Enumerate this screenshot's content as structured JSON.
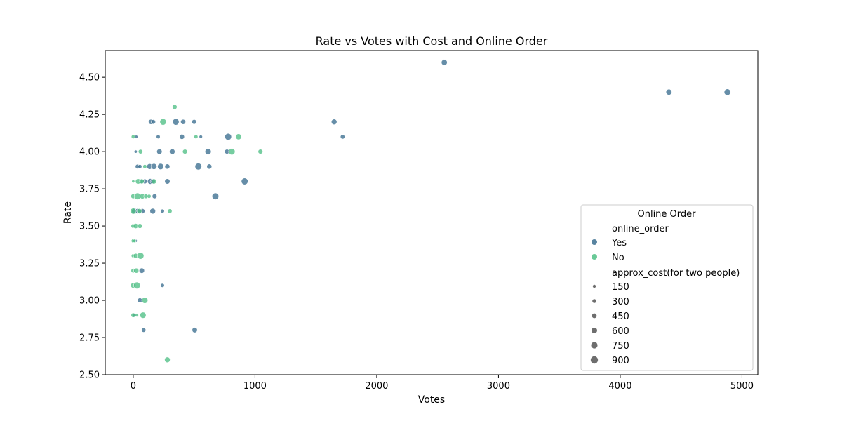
{
  "chart_data": {
    "type": "scatter",
    "title": "Rate vs Votes with Cost and Online Order",
    "xlabel": "Votes",
    "ylabel": "Rate",
    "xlim": [
      -230,
      5130
    ],
    "ylim": [
      2.5,
      4.68
    ],
    "xticks": [
      0,
      1000,
      2000,
      3000,
      4000,
      5000
    ],
    "yticks": [
      2.5,
      2.75,
      3.0,
      3.25,
      3.5,
      3.75,
      4.0,
      4.25,
      4.5
    ],
    "ytick_labels": [
      "2.50",
      "2.75",
      "3.00",
      "3.25",
      "3.50",
      "3.75",
      "4.00",
      "4.25",
      "4.50"
    ],
    "grid": false,
    "colors": {
      "Yes": "#3b6e8f",
      "No": "#4fbf85"
    },
    "legend": {
      "placement": "lower-right",
      "title": "Online Order",
      "hue_title": "online_order",
      "hue_entries": [
        "Yes",
        "No"
      ],
      "size_title": "approx_cost(for two people)",
      "size_entries": [
        150,
        300,
        450,
        600,
        750,
        900
      ]
    },
    "series": [
      {
        "name": "Yes",
        "points": [
          [
            2555,
            4.6,
            650
          ],
          [
            4400,
            4.4,
            650
          ],
          [
            4880,
            4.4,
            750
          ],
          [
            1650,
            4.2,
            600
          ],
          [
            1720,
            4.1,
            400
          ],
          [
            145,
            4.2,
            500
          ],
          [
            165,
            4.2,
            400
          ],
          [
            350,
            4.2,
            750
          ],
          [
            410,
            4.2,
            500
          ],
          [
            500,
            4.2,
            450
          ],
          [
            205,
            4.1,
            300
          ],
          [
            400,
            4.1,
            500
          ],
          [
            555,
            4.1,
            200
          ],
          [
            780,
            4.1,
            800
          ],
          [
            25,
            4.1,
            150
          ],
          [
            20,
            4.0,
            150
          ],
          [
            215,
            4.0,
            550
          ],
          [
            320,
            4.0,
            600
          ],
          [
            615,
            4.0,
            700
          ],
          [
            770,
            4.0,
            450
          ],
          [
            35,
            3.9,
            400
          ],
          [
            55,
            3.9,
            300
          ],
          [
            135,
            3.9,
            600
          ],
          [
            170,
            3.9,
            650
          ],
          [
            225,
            3.9,
            700
          ],
          [
            280,
            3.9,
            500
          ],
          [
            535,
            3.9,
            800
          ],
          [
            625,
            3.9,
            500
          ],
          [
            65,
            3.8,
            500
          ],
          [
            95,
            3.8,
            450
          ],
          [
            140,
            3.8,
            600
          ],
          [
            160,
            3.8,
            500
          ],
          [
            280,
            3.8,
            550
          ],
          [
            915,
            3.8,
            800
          ],
          [
            175,
            3.7,
            450
          ],
          [
            675,
            3.7,
            800
          ],
          [
            10,
            3.6,
            600
          ],
          [
            35,
            3.6,
            500
          ],
          [
            75,
            3.6,
            500
          ],
          [
            160,
            3.6,
            600
          ],
          [
            240,
            3.6,
            300
          ],
          [
            70,
            3.2,
            550
          ],
          [
            240,
            3.1,
            300
          ],
          [
            55,
            3.0,
            450
          ],
          [
            10,
            2.9,
            300
          ],
          [
            85,
            2.8,
            400
          ],
          [
            505,
            2.8,
            550
          ],
          [
            20,
            3.4,
            150
          ]
        ]
      },
      {
        "name": "No",
        "points": [
          [
            340,
            4.3,
            450
          ],
          [
            0,
            4.1,
            300
          ],
          [
            515,
            4.1,
            300
          ],
          [
            865,
            4.1,
            650
          ],
          [
            245,
            4.2,
            750
          ],
          [
            60,
            4.0,
            400
          ],
          [
            425,
            4.0,
            450
          ],
          [
            810,
            4.0,
            750
          ],
          [
            1045,
            4.0,
            450
          ],
          [
            95,
            3.9,
            300
          ],
          [
            0,
            3.8,
            150
          ],
          [
            40,
            3.8,
            550
          ],
          [
            70,
            3.8,
            450
          ],
          [
            170,
            3.8,
            500
          ],
          [
            0,
            3.7,
            450
          ],
          [
            35,
            3.7,
            800
          ],
          [
            75,
            3.7,
            550
          ],
          [
            105,
            3.7,
            400
          ],
          [
            130,
            3.7,
            300
          ],
          [
            0,
            3.6,
            650
          ],
          [
            50,
            3.6,
            500
          ],
          [
            300,
            3.6,
            400
          ],
          [
            0,
            3.5,
            400
          ],
          [
            20,
            3.5,
            500
          ],
          [
            55,
            3.5,
            450
          ],
          [
            0,
            3.4,
            300
          ],
          [
            10,
            3.4,
            200
          ],
          [
            0,
            3.3,
            300
          ],
          [
            20,
            3.3,
            450
          ],
          [
            60,
            3.3,
            800
          ],
          [
            0,
            3.2,
            400
          ],
          [
            25,
            3.2,
            500
          ],
          [
            0,
            3.1,
            550
          ],
          [
            30,
            3.1,
            800
          ],
          [
            95,
            3.0,
            700
          ],
          [
            0,
            2.9,
            400
          ],
          [
            30,
            2.9,
            200
          ],
          [
            80,
            2.9,
            700
          ],
          [
            280,
            2.6,
            600
          ]
        ]
      }
    ]
  }
}
